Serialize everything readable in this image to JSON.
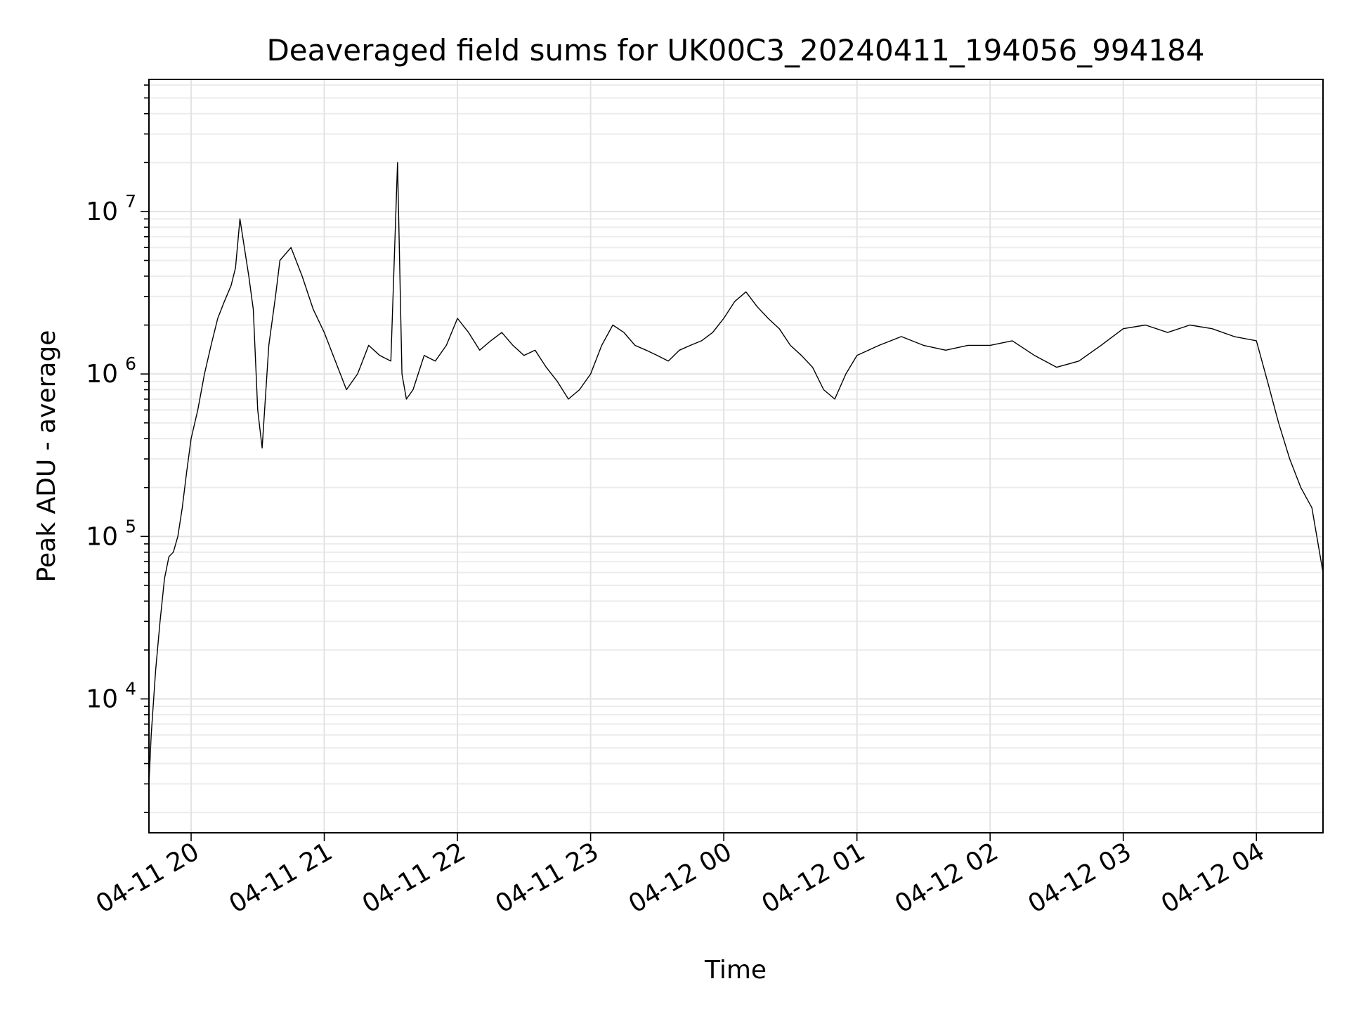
{
  "chart_data": {
    "type": "line",
    "title": "Deaveraged field sums for UK00C3_20240411_194056_994184",
    "xlabel": "Time",
    "ylabel": "Peak ADU - average",
    "y_scale": "log",
    "ylim": [
      1500,
      65000000
    ],
    "xlim": [
      "2024-04-11 19:41",
      "2024-04-12 04:30"
    ],
    "grid": true,
    "legend": "none",
    "line_color": "#000000",
    "x_ticks": [
      {
        "value": "2024-04-11 20:00",
        "label": "04-11 20"
      },
      {
        "value": "2024-04-11 21:00",
        "label": "04-11 21"
      },
      {
        "value": "2024-04-11 22:00",
        "label": "04-11 22"
      },
      {
        "value": "2024-04-11 23:00",
        "label": "04-11 23"
      },
      {
        "value": "2024-04-12 00:00",
        "label": "04-12 00"
      },
      {
        "value": "2024-04-12 01:00",
        "label": "04-12 01"
      },
      {
        "value": "2024-04-12 02:00",
        "label": "04-12 02"
      },
      {
        "value": "2024-04-12 03:00",
        "label": "04-12 03"
      },
      {
        "value": "2024-04-12 04:00",
        "label": "04-12 04"
      }
    ],
    "y_ticks": [
      {
        "value": 10000,
        "base": "10",
        "exp": "4"
      },
      {
        "value": 100000,
        "base": "10",
        "exp": "5"
      },
      {
        "value": 1000000,
        "base": "10",
        "exp": "6"
      },
      {
        "value": 10000000,
        "base": "10",
        "exp": "7"
      }
    ],
    "series": [
      {
        "x": [
          "2024-04-11 19:41",
          "2024-04-11 19:42",
          "2024-04-11 19:44",
          "2024-04-11 19:46",
          "2024-04-11 19:48",
          "2024-04-11 19:50",
          "2024-04-11 19:52",
          "2024-04-11 19:54",
          "2024-04-11 19:56",
          "2024-04-11 19:58",
          "2024-04-11 20:00",
          "2024-04-11 20:03",
          "2024-04-11 20:06",
          "2024-04-11 20:09",
          "2024-04-11 20:12",
          "2024-04-11 20:15",
          "2024-04-11 20:18",
          "2024-04-11 20:20",
          "2024-04-11 20:22",
          "2024-04-11 20:24",
          "2024-04-11 20:26",
          "2024-04-11 20:28",
          "2024-04-11 20:30",
          "2024-04-11 20:32",
          "2024-04-11 20:35",
          "2024-04-11 20:38",
          "2024-04-11 20:40",
          "2024-04-11 20:45",
          "2024-04-11 20:50",
          "2024-04-11 20:55",
          "2024-04-11 21:00",
          "2024-04-11 21:05",
          "2024-04-11 21:10",
          "2024-04-11 21:15",
          "2024-04-11 21:20",
          "2024-04-11 21:25",
          "2024-04-11 21:30",
          "2024-04-11 21:33",
          "2024-04-11 21:35",
          "2024-04-11 21:37",
          "2024-04-11 21:40",
          "2024-04-11 21:45",
          "2024-04-11 21:50",
          "2024-04-11 21:55",
          "2024-04-11 22:00",
          "2024-04-11 22:05",
          "2024-04-11 22:10",
          "2024-04-11 22:15",
          "2024-04-11 22:20",
          "2024-04-11 22:25",
          "2024-04-11 22:30",
          "2024-04-11 22:35",
          "2024-04-11 22:40",
          "2024-04-11 22:45",
          "2024-04-11 22:50",
          "2024-04-11 22:55",
          "2024-04-11 23:00",
          "2024-04-11 23:05",
          "2024-04-11 23:10",
          "2024-04-11 23:15",
          "2024-04-11 23:20",
          "2024-04-11 23:25",
          "2024-04-11 23:30",
          "2024-04-11 23:35",
          "2024-04-11 23:40",
          "2024-04-11 23:45",
          "2024-04-11 23:50",
          "2024-04-11 23:55",
          "2024-04-12 00:00",
          "2024-04-12 00:05",
          "2024-04-12 00:10",
          "2024-04-12 00:15",
          "2024-04-12 00:20",
          "2024-04-12 00:25",
          "2024-04-12 00:30",
          "2024-04-12 00:35",
          "2024-04-12 00:40",
          "2024-04-12 00:45",
          "2024-04-12 00:50",
          "2024-04-12 00:55",
          "2024-04-12 01:00",
          "2024-04-12 01:10",
          "2024-04-12 01:20",
          "2024-04-12 01:30",
          "2024-04-12 01:40",
          "2024-04-12 01:50",
          "2024-04-12 02:00",
          "2024-04-12 02:10",
          "2024-04-12 02:20",
          "2024-04-12 02:30",
          "2024-04-12 02:40",
          "2024-04-12 02:50",
          "2024-04-12 03:00",
          "2024-04-12 03:10",
          "2024-04-12 03:20",
          "2024-04-12 03:30",
          "2024-04-12 03:40",
          "2024-04-12 03:50",
          "2024-04-12 04:00",
          "2024-04-12 04:05",
          "2024-04-12 04:10",
          "2024-04-12 04:15",
          "2024-04-12 04:20",
          "2024-04-12 04:25",
          "2024-04-12 04:30"
        ],
        "y": [
          3000,
          6000,
          15000,
          30000,
          55000,
          75000,
          80000,
          100000,
          150000,
          250000,
          400000,
          600000,
          1000000,
          1500000,
          2200000,
          2800000,
          3500000,
          4500000,
          9000000,
          6000000,
          4000000,
          2500000,
          600000,
          350000,
          1500000,
          3000000,
          5000000,
          6000000,
          4000000,
          2500000,
          1800000,
          1200000,
          800000,
          1000000,
          1500000,
          1300000,
          1200000,
          20000000,
          1000000,
          700000,
          800000,
          1300000,
          1200000,
          1500000,
          2200000,
          1800000,
          1400000,
          1600000,
          1800000,
          1500000,
          1300000,
          1400000,
          1100000,
          900000,
          700000,
          800000,
          1000000,
          1500000,
          2000000,
          1800000,
          1500000,
          1400000,
          1300000,
          1200000,
          1400000,
          1500000,
          1600000,
          1800000,
          2200000,
          2800000,
          3200000,
          2600000,
          2200000,
          1900000,
          1500000,
          1300000,
          1100000,
          800000,
          700000,
          1000000,
          1300000,
          1500000,
          1700000,
          1500000,
          1400000,
          1500000,
          1500000,
          1600000,
          1300000,
          1100000,
          1200000,
          1500000,
          1900000,
          2000000,
          1800000,
          2000000,
          1900000,
          1700000,
          1600000,
          900000,
          500000,
          300000,
          200000,
          150000,
          60000
        ]
      }
    ]
  }
}
